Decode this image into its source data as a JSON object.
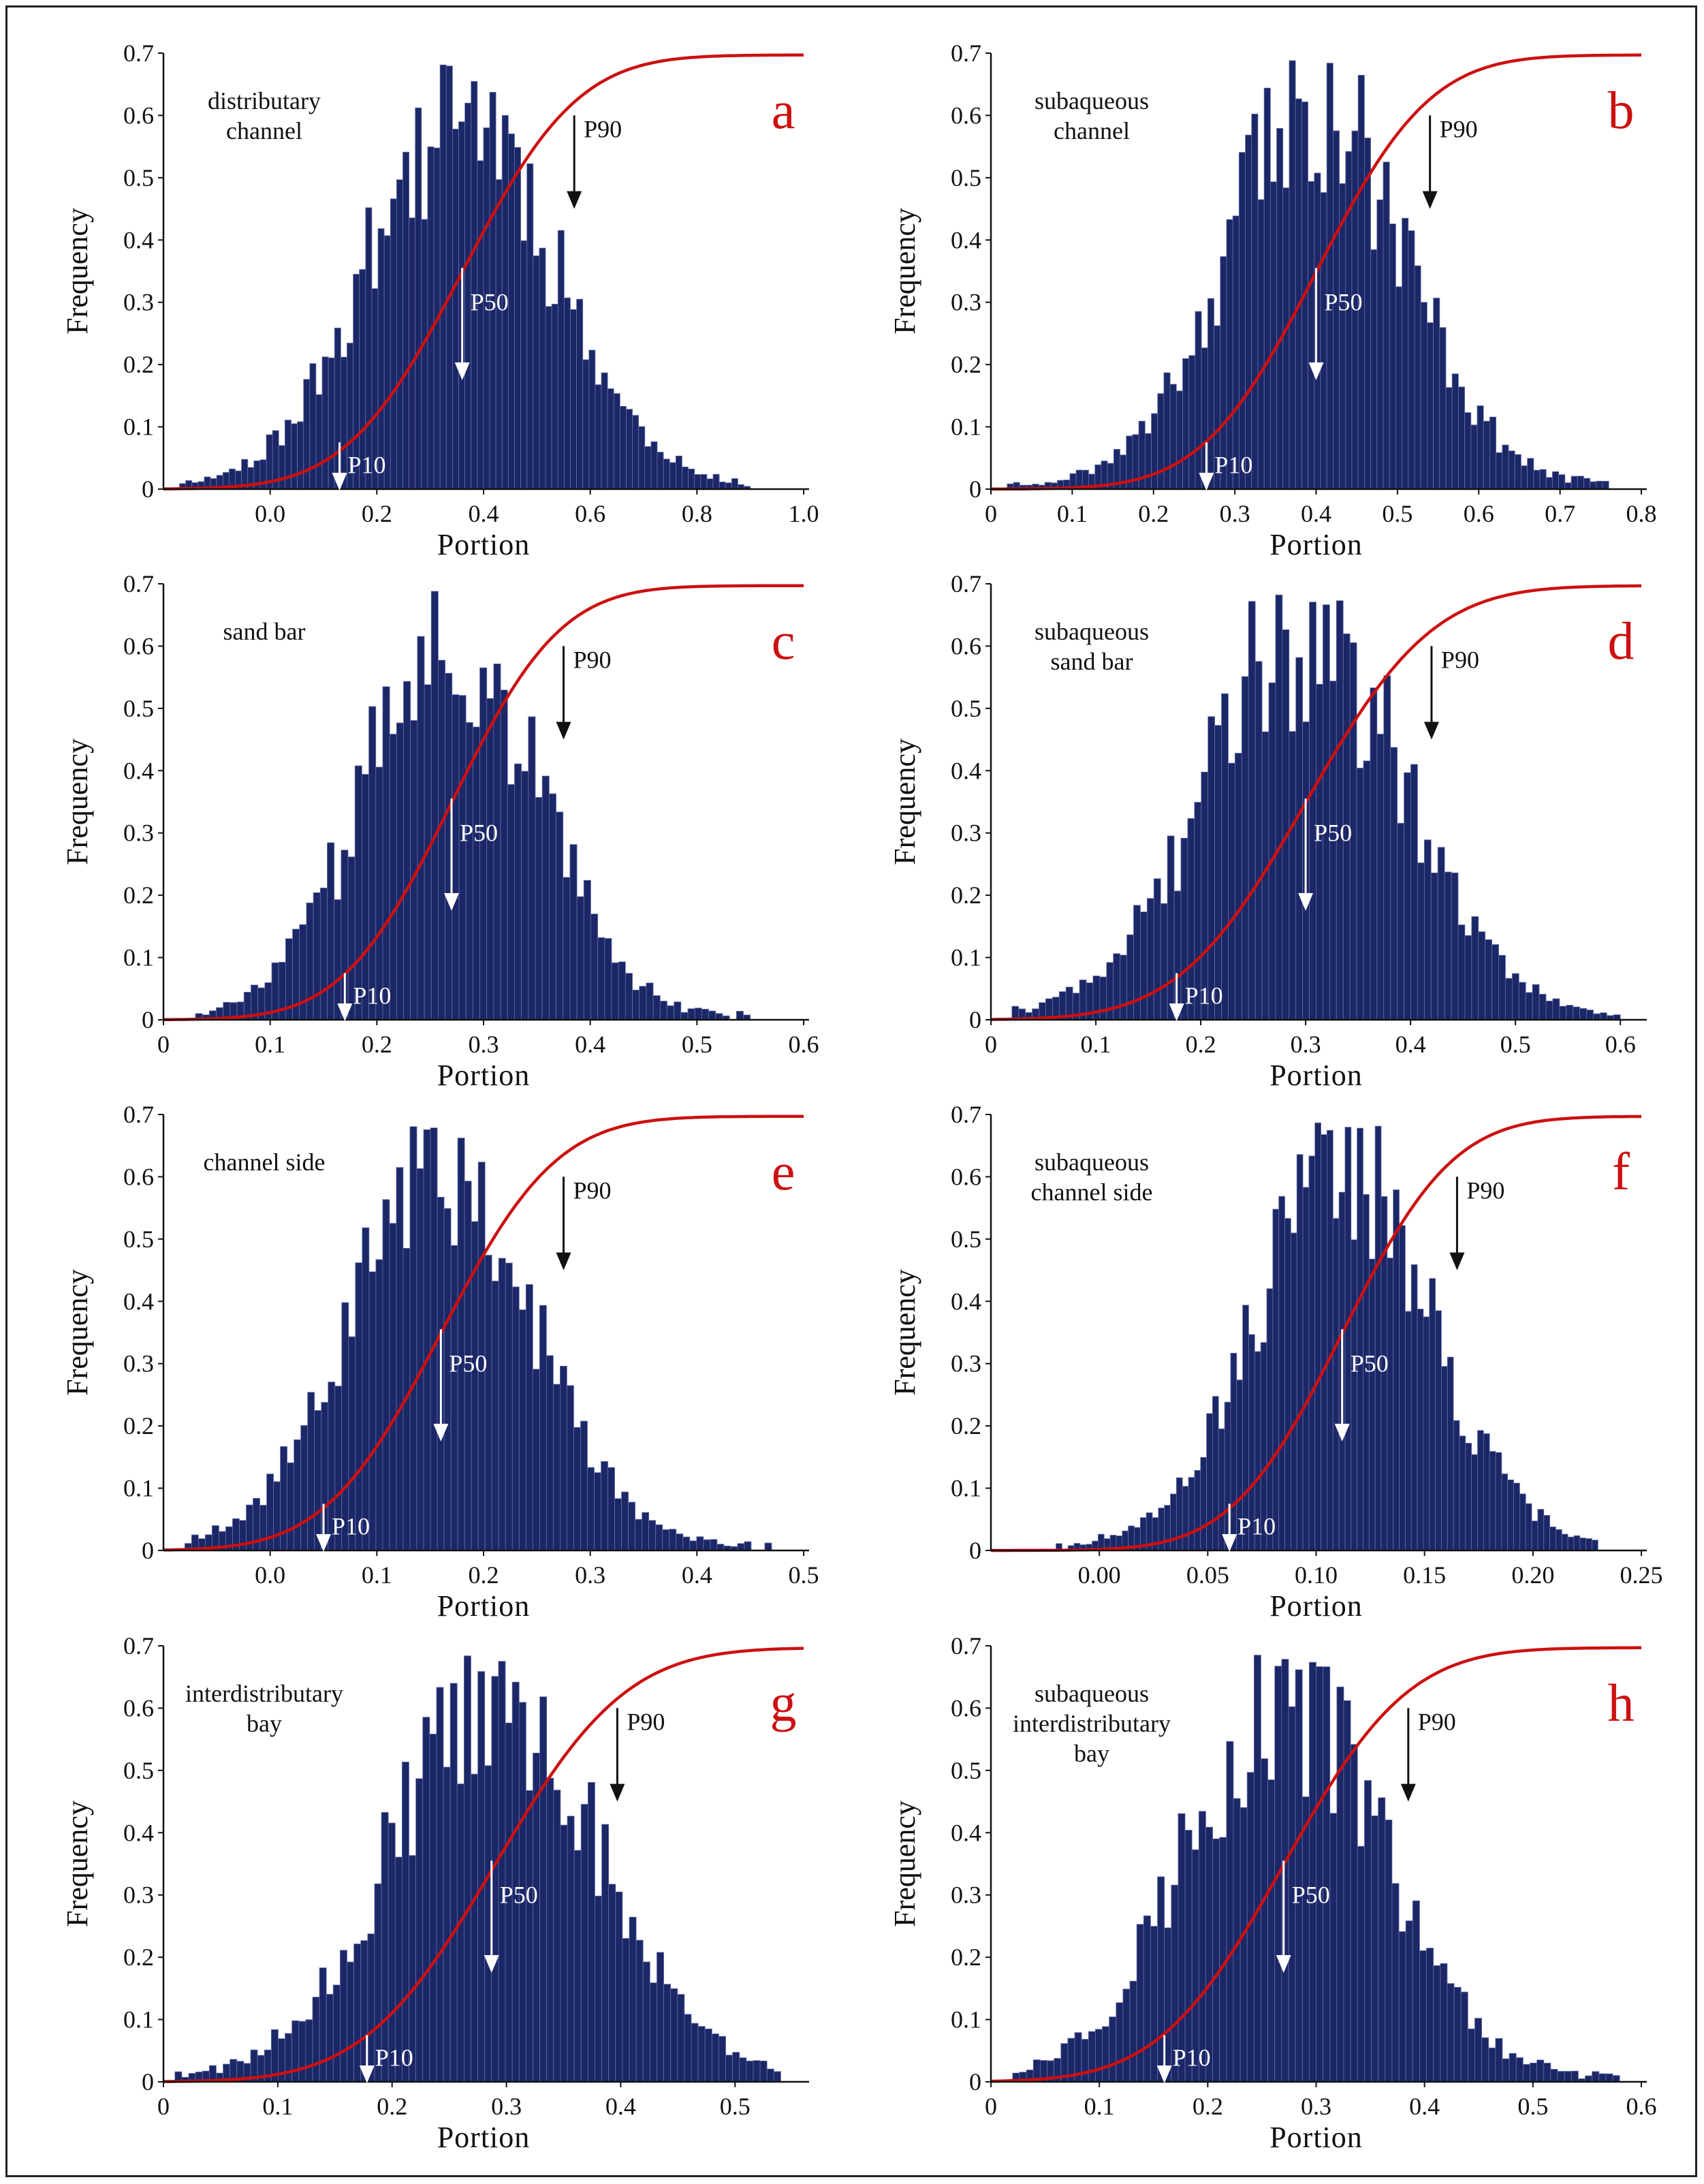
{
  "colors": {
    "bar": "#1b2766",
    "bar_edge": "#6670a8",
    "cdf": "#cc1010",
    "p90_arrow": "#111111",
    "p_arrow": "#ffffff",
    "letter": "#cc1010"
  },
  "chart_data": [
    {
      "id": "a",
      "type": "bar",
      "letter": "a",
      "notes": [
        "distributary",
        "channel"
      ],
      "xlabel": "Portion",
      "ylabel": "Frequency",
      "xlim": [
        -0.2,
        1.0
      ],
      "ylim": [
        0,
        0.7
      ],
      "xticks": [
        "0.0",
        "0.2",
        "0.4",
        "0.6",
        "0.8",
        "1.0"
      ],
      "xtickvals": [
        0,
        0.2,
        0.4,
        0.6,
        0.8,
        1.0
      ],
      "yticks": [
        "0",
        "0.1",
        "0.2",
        "0.3",
        "0.4",
        "0.5",
        "0.6",
        "0.7"
      ],
      "mean": 0.36,
      "sd": 0.17,
      "nbins": 92,
      "range": [
        -0.17,
        0.9
      ],
      "seed": 11,
      "p10": {
        "label": "P10",
        "value": 0.13
      },
      "p50": {
        "label": "P50",
        "value": 0.36
      },
      "p90": {
        "label": "P90",
        "value": 0.57
      }
    },
    {
      "id": "b",
      "type": "bar",
      "letter": "b",
      "notes": [
        "subaqueous",
        "channel"
      ],
      "xlabel": "Portion",
      "ylabel": "Frequency",
      "xlim": [
        0,
        0.8
      ],
      "ylim": [
        0,
        0.7
      ],
      "xticks": [
        "0",
        "0.1",
        "0.2",
        "0.3",
        "0.4",
        "0.5",
        "0.6",
        "0.7",
        "0.8"
      ],
      "xtickvals": [
        0,
        0.1,
        0.2,
        0.3,
        0.4,
        0.5,
        0.6,
        0.7,
        0.8
      ],
      "yticks": [
        "0",
        "0.1",
        "0.2",
        "0.3",
        "0.4",
        "0.5",
        "0.6",
        "0.7"
      ],
      "mean": 0.4,
      "sd": 0.11,
      "nbins": 96,
      "range": [
        0.02,
        0.76
      ],
      "seed": 23,
      "p10": {
        "label": "P10",
        "value": 0.265
      },
      "p50": {
        "label": "P50",
        "value": 0.4
      },
      "p90": {
        "label": "P90",
        "value": 0.54
      }
    },
    {
      "id": "c",
      "type": "bar",
      "letter": "c",
      "notes": [
        "sand bar"
      ],
      "xlabel": "Portion",
      "ylabel": "Frequency",
      "xlim": [
        0,
        0.6
      ],
      "ylim": [
        0,
        0.7
      ],
      "xticks": [
        "0",
        "0.1",
        "0.2",
        "0.3",
        "0.4",
        "0.5",
        "0.6"
      ],
      "xtickvals": [
        0,
        0.1,
        0.2,
        0.3,
        0.4,
        0.5,
        0.6
      ],
      "yticks": [
        "0",
        "0.1",
        "0.2",
        "0.3",
        "0.4",
        "0.5",
        "0.6",
        "0.7"
      ],
      "mean": 0.27,
      "sd": 0.08,
      "nbins": 80,
      "range": [
        0.03,
        0.55
      ],
      "seed": 37,
      "p10": {
        "label": "P10",
        "value": 0.17
      },
      "p50": {
        "label": "P50",
        "value": 0.27
      },
      "p90": {
        "label": "P90",
        "value": 0.375
      }
    },
    {
      "id": "d",
      "type": "bar",
      "letter": "d",
      "notes": [
        "subaqueous",
        "sand bar"
      ],
      "xlabel": "Portion",
      "ylabel": "Frequency",
      "xlim": [
        0,
        0.62
      ],
      "ylim": [
        0,
        0.7
      ],
      "xticks": [
        "0",
        "0.1",
        "0.2",
        "0.3",
        "0.4",
        "0.5",
        "0.6"
      ],
      "xtickvals": [
        0,
        0.1,
        0.2,
        0.3,
        0.4,
        0.5,
        0.6
      ],
      "yticks": [
        "0",
        "0.1",
        "0.2",
        "0.3",
        "0.4",
        "0.5",
        "0.6",
        "0.7"
      ],
      "mean": 0.3,
      "sd": 0.095,
      "nbins": 90,
      "range": [
        0.02,
        0.6
      ],
      "seed": 41,
      "p10": {
        "label": "P10",
        "value": 0.177
      },
      "p50": {
        "label": "P50",
        "value": 0.3
      },
      "p90": {
        "label": "P90",
        "value": 0.42
      }
    },
    {
      "id": "e",
      "type": "bar",
      "letter": "e",
      "notes": [
        "channel side"
      ],
      "xlabel": "Portion",
      "ylabel": "Frequency",
      "xlim": [
        -0.1,
        0.5
      ],
      "ylim": [
        0,
        0.7
      ],
      "xticks": [
        "0.0",
        "0.1",
        "0.2",
        "0.3",
        "0.4",
        "0.5"
      ],
      "xtickvals": [
        0,
        0.1,
        0.2,
        0.3,
        0.4,
        0.5
      ],
      "yticks": [
        "0",
        "0.1",
        "0.2",
        "0.3",
        "0.4",
        "0.5",
        "0.6",
        "0.7"
      ],
      "mean": 0.16,
      "sd": 0.085,
      "nbins": 86,
      "range": [
        -0.08,
        0.47
      ],
      "seed": 53,
      "p10": {
        "label": "P10",
        "value": 0.05
      },
      "p50": {
        "label": "P50",
        "value": 0.16
      },
      "p90": {
        "label": "P90",
        "value": 0.275
      }
    },
    {
      "id": "f",
      "type": "bar",
      "letter": "f",
      "notes": [
        "subaqueous",
        "channel side"
      ],
      "xlabel": "Portion",
      "ylabel": "Frequency",
      "xlim": [
        -0.05,
        0.25
      ],
      "ylim": [
        0,
        0.7
      ],
      "xticks": [
        "0.00",
        "0.05",
        "0.10",
        "0.15",
        "0.20",
        "0.25"
      ],
      "xtickvals": [
        0,
        0.05,
        0.1,
        0.15,
        0.2,
        0.25
      ],
      "yticks": [
        "0",
        "0.1",
        "0.2",
        "0.3",
        "0.4",
        "0.5",
        "0.6",
        "0.7"
      ],
      "mean": 0.112,
      "sd": 0.04,
      "nbins": 90,
      "range": [
        -0.02,
        0.23
      ],
      "seed": 67,
      "p10": {
        "label": "P10",
        "value": 0.06
      },
      "p50": {
        "label": "P50",
        "value": 0.112
      },
      "p90": {
        "label": "P90",
        "value": 0.165
      }
    },
    {
      "id": "g",
      "type": "bar",
      "letter": "g",
      "notes": [
        "interdistributary",
        "bay"
      ],
      "xlabel": "Portion",
      "ylabel": "Frequency",
      "xlim": [
        0,
        0.56
      ],
      "ylim": [
        0,
        0.7
      ],
      "xticks": [
        "0",
        "0.1",
        "0.2",
        "0.3",
        "0.4",
        "0.5"
      ],
      "xtickvals": [
        0,
        0.1,
        0.2,
        0.3,
        0.4,
        0.5
      ],
      "yticks": [
        "0",
        "0.1",
        "0.2",
        "0.3",
        "0.4",
        "0.5",
        "0.6",
        "0.7"
      ],
      "mean": 0.29,
      "sd": 0.09,
      "nbins": 88,
      "range": [
        0.01,
        0.54
      ],
      "seed": 79,
      "p10": {
        "label": "P10",
        "value": 0.178
      },
      "p50": {
        "label": "P50",
        "value": 0.287
      },
      "p90": {
        "label": "P90",
        "value": 0.397
      }
    },
    {
      "id": "h",
      "type": "bar",
      "letter": "h",
      "notes": [
        "subaqueous",
        "interdistributary",
        "bay"
      ],
      "xlabel": "Portion",
      "ylabel": "Frequency",
      "xlim": [
        0,
        0.6
      ],
      "ylim": [
        0,
        0.7
      ],
      "xticks": [
        "0",
        "0.1",
        "0.2",
        "0.3",
        "0.4",
        "0.5",
        "0.6"
      ],
      "xtickvals": [
        0,
        0.1,
        0.2,
        0.3,
        0.4,
        0.5,
        0.6
      ],
      "yticks": [
        "0",
        "0.1",
        "0.2",
        "0.3",
        "0.4",
        "0.5",
        "0.6",
        "0.7"
      ],
      "mean": 0.27,
      "sd": 0.09,
      "nbins": 88,
      "range": [
        0.02,
        0.58
      ],
      "seed": 97,
      "p10": {
        "label": "P10",
        "value": 0.16
      },
      "p50": {
        "label": "P50",
        "value": 0.27
      },
      "p90": {
        "label": "P90",
        "value": 0.385
      }
    }
  ]
}
